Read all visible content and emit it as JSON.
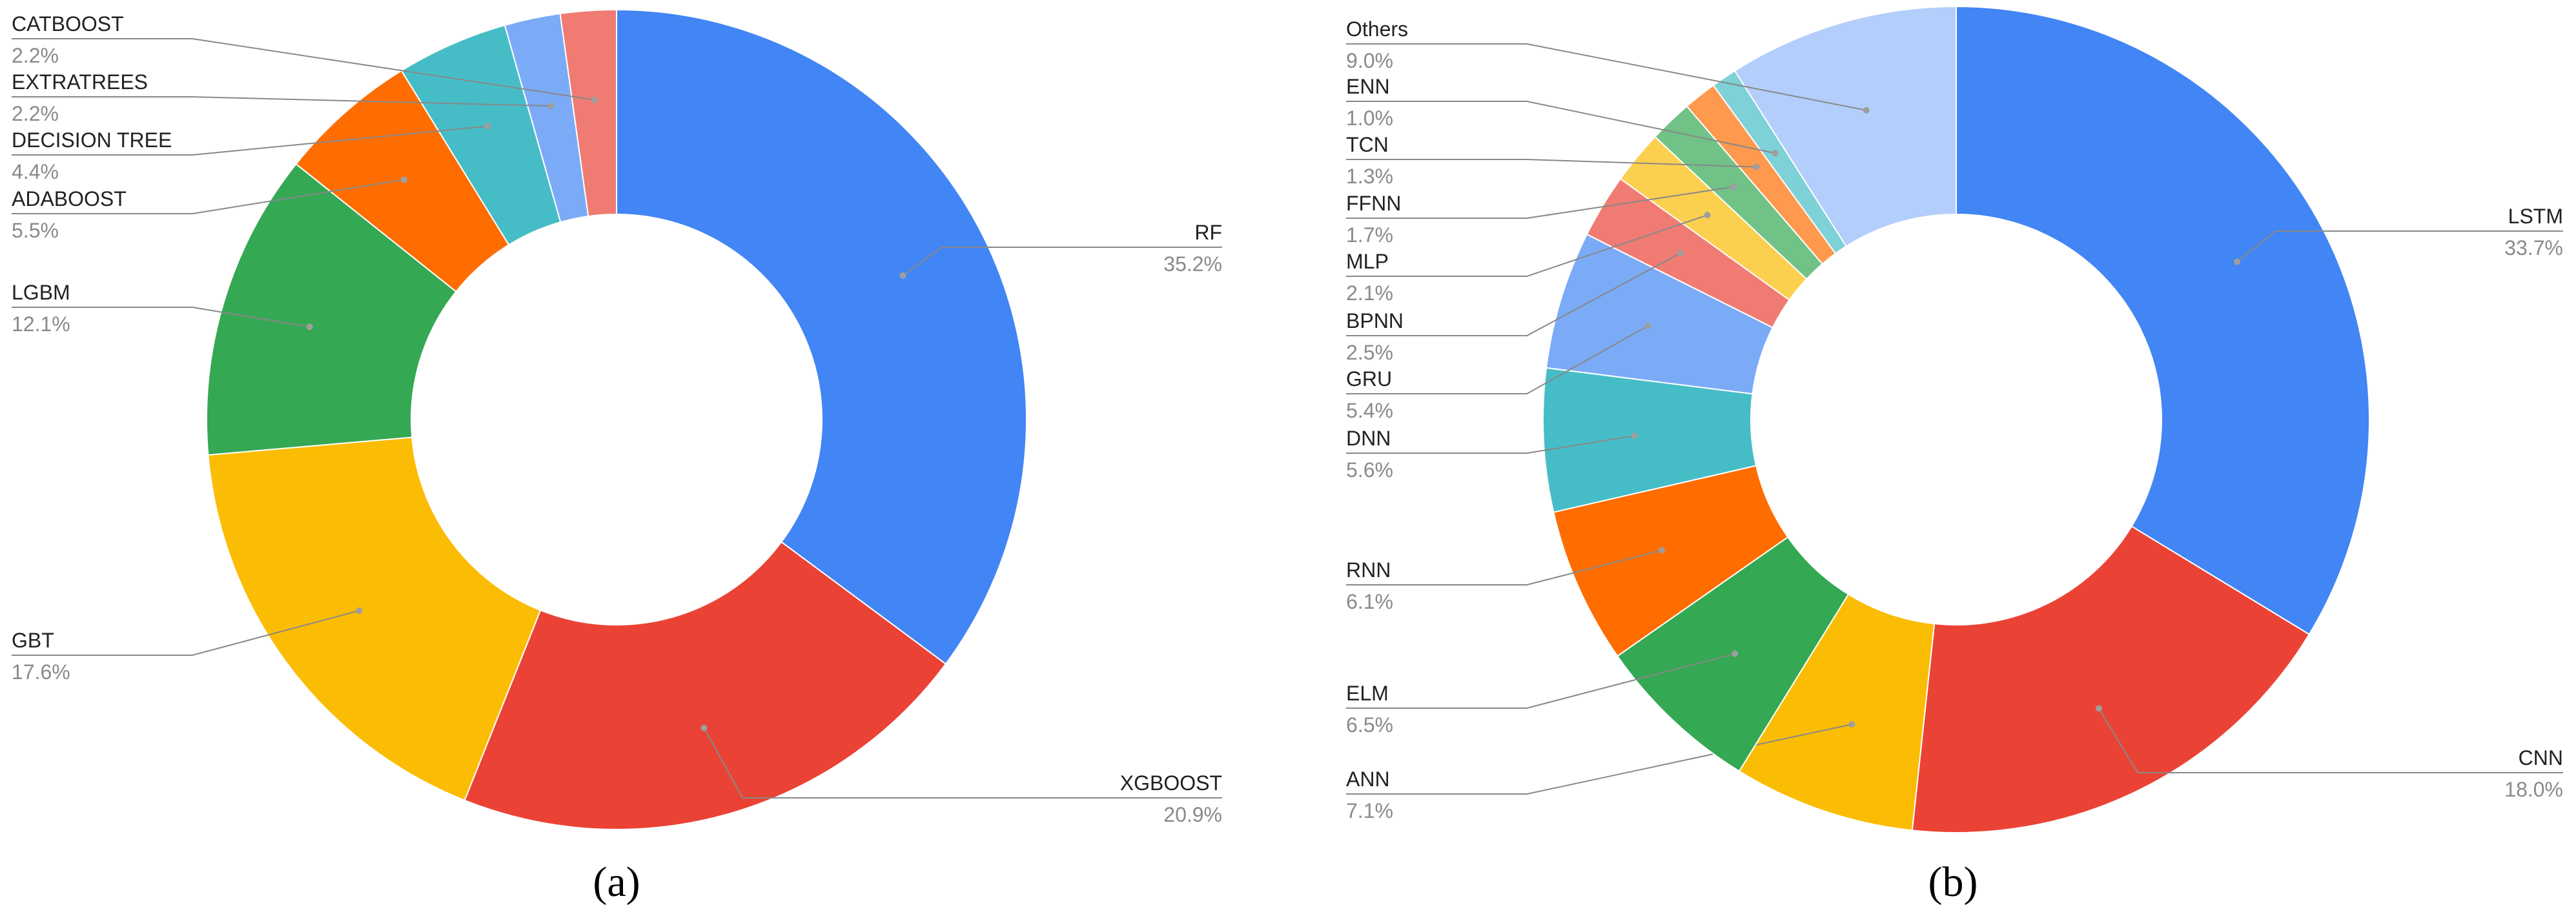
{
  "chart_data": [
    {
      "type": "pie",
      "donut": true,
      "caption": "(a)",
      "legend": "none",
      "labels": [
        "RF",
        "XGBOOST",
        "GBT",
        "LGBM",
        "ADABOOST",
        "DECISION TREE",
        "EXTRATREES",
        "CATBOOST"
      ],
      "values": [
        35.2,
        20.9,
        17.6,
        12.1,
        5.5,
        4.4,
        2.2,
        2.2
      ],
      "value_labels": [
        "35.2%",
        "20.9%",
        "17.6%",
        "12.1%",
        "5.5%",
        "4.4%",
        "2.2%",
        "2.2%"
      ],
      "colors": [
        "#4285F4",
        "#EA4335",
        "#FBBC04",
        "#34A853",
        "#FF6D01",
        "#46BDC6",
        "#7BAAF7",
        "#F07B72"
      ]
    },
    {
      "type": "pie",
      "donut": true,
      "caption": "(b)",
      "legend": "none",
      "labels": [
        "LSTM",
        "CNN",
        "ANN",
        "ELM",
        "RNN",
        "DNN",
        "GRU",
        "BPNN",
        "MLP",
        "FFNN",
        "TCN",
        "ENN",
        "Others"
      ],
      "values": [
        33.7,
        18.0,
        7.1,
        6.5,
        6.1,
        5.6,
        5.4,
        2.5,
        2.1,
        1.7,
        1.3,
        1.0,
        9.0
      ],
      "value_labels": [
        "33.7%",
        "18.0%",
        "7.1%",
        "6.5%",
        "6.1%",
        "5.6%",
        "5.4%",
        "2.5%",
        "2.1%",
        "1.7%",
        "1.3%",
        "1.0%",
        "9.0%"
      ],
      "colors": [
        "#4285F4",
        "#EA4335",
        "#FBBC04",
        "#34A853",
        "#FF6D01",
        "#46BDC6",
        "#7BAAF7",
        "#F07B72",
        "#FCD04F",
        "#71C287",
        "#FF994D",
        "#7ED1D7",
        "#B3CEFB"
      ]
    }
  ]
}
